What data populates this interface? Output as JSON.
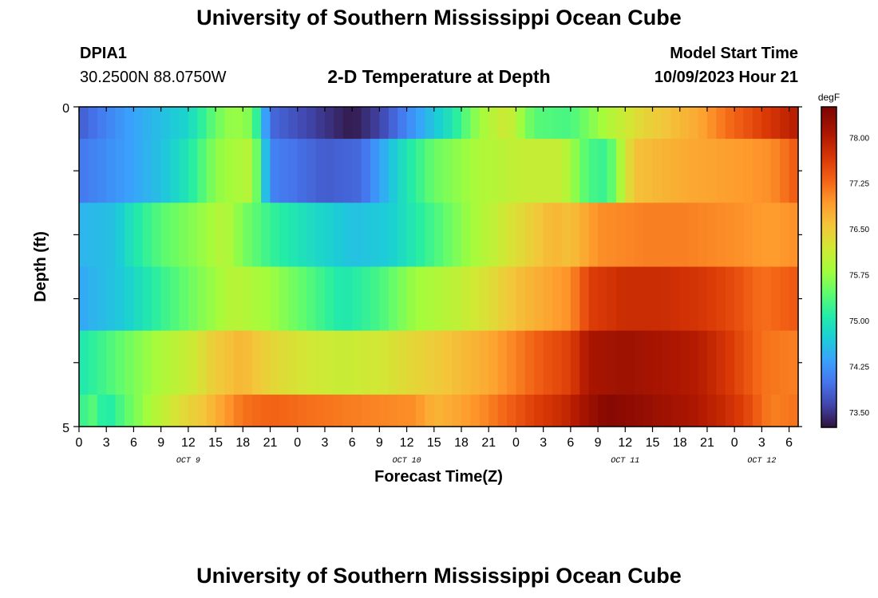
{
  "header": {
    "title": "University of Southern Mississippi Ocean Cube",
    "station": "DPIA1",
    "coords": "30.2500N  88.0750W",
    "subtitle": "2-D Temperature at Depth",
    "start_label": "Model Start Time",
    "start_value": "10/09/2023 Hour 21"
  },
  "footer": {
    "title": "University of Southern Mississippi Ocean Cube"
  },
  "chart_data": {
    "type": "heatmap",
    "title": "2-D Temperature at Depth",
    "xlabel": "Forecast Time(Z)",
    "ylabel": "Depth (ft)",
    "x_start": "2023-10-09 00Z",
    "x_step_hours": 1,
    "x_tick_labels": [
      "0",
      "3",
      "6",
      "9",
      "12",
      "15",
      "18",
      "21",
      "0",
      "3",
      "6",
      "9",
      "12",
      "15",
      "18",
      "21",
      "0",
      "3",
      "6",
      "9",
      "12",
      "15",
      "18",
      "21",
      "0",
      "3",
      "6"
    ],
    "date_labels": [
      "OCT 9",
      "OCT 10",
      "OCT 11",
      "OCT 12"
    ],
    "y_tick_labels": [
      "0",
      "5"
    ],
    "ylim": [
      0,
      5
    ],
    "colorbar": {
      "unit": "degF",
      "min": 73.25,
      "max": 78.5,
      "ticks": [
        "73.50",
        "74.25",
        "75.00",
        "75.75",
        "76.50",
        "77.25",
        "78.00"
      ],
      "stops": [
        [
          0.0,
          "#30123b"
        ],
        [
          0.07,
          "#4145ab"
        ],
        [
          0.14,
          "#4675ed"
        ],
        [
          0.21,
          "#39a2fc"
        ],
        [
          0.28,
          "#1bcfd4"
        ],
        [
          0.35,
          "#24eca6"
        ],
        [
          0.42,
          "#61fc6c"
        ],
        [
          0.49,
          "#a4fc3b"
        ],
        [
          0.56,
          "#d1e834"
        ],
        [
          0.63,
          "#f3c63a"
        ],
        [
          0.7,
          "#fe9b2d"
        ],
        [
          0.77,
          "#f36315"
        ],
        [
          0.84,
          "#d93806"
        ],
        [
          0.91,
          "#b11901"
        ],
        [
          1.0,
          "#7a0403"
        ]
      ]
    },
    "depth_rows": [
      {
        "depth_range": "0.0-0.5",
        "key_times": [
          0,
          5,
          12,
          15,
          17,
          19,
          21,
          24,
          27,
          30,
          33,
          37,
          41,
          44,
          47,
          50,
          54,
          58,
          62,
          65,
          68,
          71,
          75,
          79
        ],
        "key_values": [
          73.8,
          74.3,
          74.8,
          75.5,
          75.8,
          75.6,
          73.9,
          73.7,
          73.5,
          73.3,
          73.6,
          74.3,
          75.0,
          75.8,
          76.2,
          75.4,
          75.3,
          75.9,
          76.4,
          76.6,
          76.8,
          77.2,
          77.6,
          78.0
        ]
      },
      {
        "depth_range": "0.5-1.5",
        "key_times": [
          0,
          5,
          9,
          12,
          15,
          19,
          21,
          27,
          31,
          36,
          39,
          44,
          49,
          53,
          56,
          58,
          61,
          64,
          67,
          72,
          76,
          79
        ],
        "key_values": [
          74.0,
          74.3,
          74.6,
          75.0,
          75.7,
          76.0,
          74.1,
          73.8,
          73.9,
          75.0,
          75.5,
          75.9,
          76.1,
          76.1,
          75.3,
          75.2,
          76.6,
          76.7,
          76.8,
          76.9,
          77.0,
          77.4
        ]
      },
      {
        "depth_range": "1.5-2.5",
        "key_times": [
          0,
          4,
          6,
          9,
          13,
          16,
          18,
          21,
          25,
          30,
          34,
          39,
          43,
          46,
          50,
          52,
          54,
          57,
          62,
          67,
          72,
          76,
          79
        ],
        "key_values": [
          74.5,
          74.6,
          75.0,
          75.4,
          75.7,
          76.0,
          75.6,
          75.2,
          74.9,
          74.6,
          74.7,
          75.3,
          75.8,
          76.1,
          76.5,
          76.7,
          76.6,
          77.0,
          77.1,
          77.1,
          77.0,
          76.9,
          77.0
        ]
      },
      {
        "depth_range": "2.5-3.5",
        "key_times": [
          0,
          5,
          9,
          13,
          17,
          21,
          25,
          29,
          33,
          37,
          41,
          45,
          48,
          51,
          54,
          56,
          60,
          64,
          68,
          72,
          75,
          79
        ],
        "key_values": [
          74.4,
          74.7,
          75.2,
          75.6,
          76.0,
          75.8,
          75.4,
          75.0,
          75.3,
          75.8,
          76.0,
          76.3,
          76.6,
          76.8,
          77.0,
          77.6,
          77.8,
          77.8,
          77.7,
          77.5,
          77.2,
          77.4
        ]
      },
      {
        "depth_range": "3.5-4.5",
        "key_times": [
          0,
          3,
          6,
          9,
          12,
          15,
          18,
          21,
          25,
          29,
          33,
          37,
          41,
          45,
          48,
          51,
          54,
          56,
          60,
          64,
          68,
          72,
          75,
          79
        ],
        "key_values": [
          75.0,
          75.3,
          75.6,
          75.9,
          76.1,
          76.5,
          76.7,
          76.4,
          76.2,
          76.1,
          76.2,
          76.4,
          76.6,
          76.8,
          77.1,
          77.4,
          77.6,
          78.1,
          78.2,
          78.1,
          78.0,
          77.6,
          77.2,
          77.1
        ]
      },
      {
        "depth_range": "4.5-5.0",
        "key_times": [
          0,
          1,
          3,
          5,
          8,
          11,
          14,
          16,
          18,
          21,
          26,
          31,
          37,
          39,
          41,
          44,
          47,
          50,
          53,
          56,
          58,
          61,
          64,
          67,
          70,
          73,
          76,
          79
        ],
        "key_values": [
          75.0,
          75.5,
          75.0,
          75.4,
          75.9,
          76.3,
          76.6,
          76.9,
          77.2,
          77.3,
          77.2,
          77.1,
          77.0,
          76.7,
          76.8,
          77.0,
          77.3,
          77.6,
          77.8,
          78.2,
          78.4,
          78.3,
          78.2,
          78.1,
          77.9,
          77.6,
          77.1,
          77.2
        ]
      }
    ]
  }
}
